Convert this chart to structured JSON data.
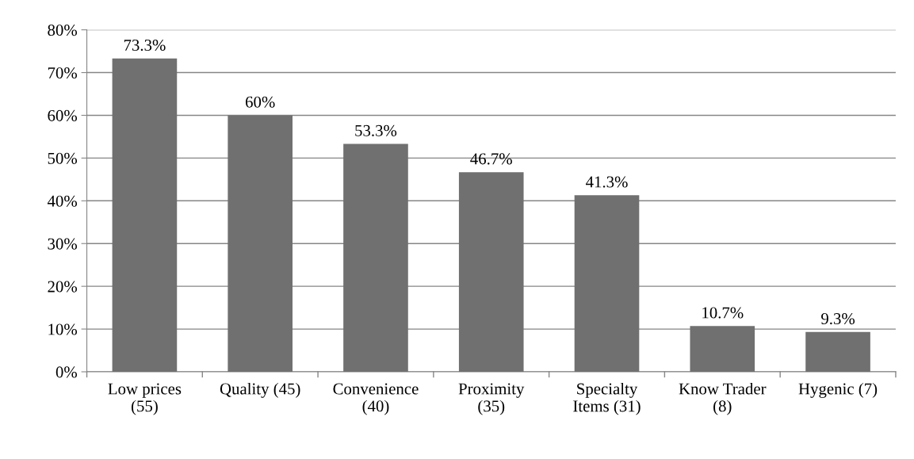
{
  "chart_data": {
    "type": "bar",
    "categories": [
      "Low prices\n(55)",
      "Quality (45)",
      "Convenience\n(40)",
      "Proximity\n(35)",
      "Specialty\nItems (31)",
      "Know Trader\n(8)",
      "Hygenic (7)"
    ],
    "values": [
      73.3,
      60,
      53.3,
      46.7,
      41.3,
      10.7,
      9.3
    ],
    "value_labels": [
      "73.3%",
      "60%",
      "53.3%",
      "46.7%",
      "41.3%",
      "10.7%",
      "9.3%"
    ],
    "color": "#707070",
    "ylim": [
      0,
      80
    ],
    "yticks": [
      {
        "value": 0,
        "label": "0%"
      },
      {
        "value": 10,
        "label": "10%"
      },
      {
        "value": 20,
        "label": "20%"
      },
      {
        "value": 30,
        "label": "30%"
      },
      {
        "value": 40,
        "label": "40%"
      },
      {
        "value": 50,
        "label": "50%"
      },
      {
        "value": 60,
        "label": "60%"
      },
      {
        "value": 70,
        "label": "70%"
      },
      {
        "value": 80,
        "label": "80%"
      }
    ],
    "grid": "y"
  }
}
